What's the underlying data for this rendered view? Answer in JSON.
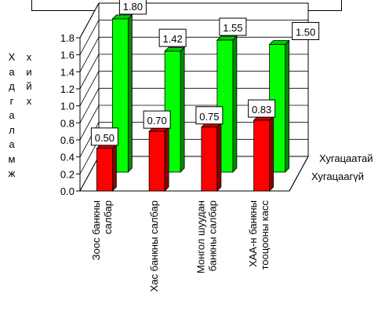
{
  "chart_data": {
    "type": "bar",
    "title": "",
    "ylabel": "Хадгаламж хийх",
    "ylim": [
      0,
      1.8
    ],
    "yticks": [
      "0.0",
      "0.2",
      "0.4",
      "0.6",
      "0.8",
      "1.0",
      "1.2",
      "1.4",
      "1.6",
      "1.8"
    ],
    "grid": true,
    "legend_position": "right",
    "categories": [
      [
        "Зоос банкны",
        "салбар"
      ],
      [
        "Хас  банкны салбар"
      ],
      [
        "Монгол шуудан",
        "банкны салбар"
      ],
      [
        "ХАА-н банкны",
        "тооцооны касс"
      ]
    ],
    "series": [
      {
        "name": "Хугацаагүй",
        "color": "#ff0000",
        "values": [
          0.5,
          0.7,
          0.75,
          0.83
        ],
        "labels": [
          "0.50",
          "0.70",
          "0.75",
          "0.83"
        ]
      },
      {
        "name": "Хугацаатай",
        "color": "#00ff00",
        "values": [
          1.8,
          1.42,
          1.55,
          1.5
        ],
        "labels": [
          "1.80",
          "1.42",
          "1.55",
          "1.50"
        ]
      }
    ]
  }
}
